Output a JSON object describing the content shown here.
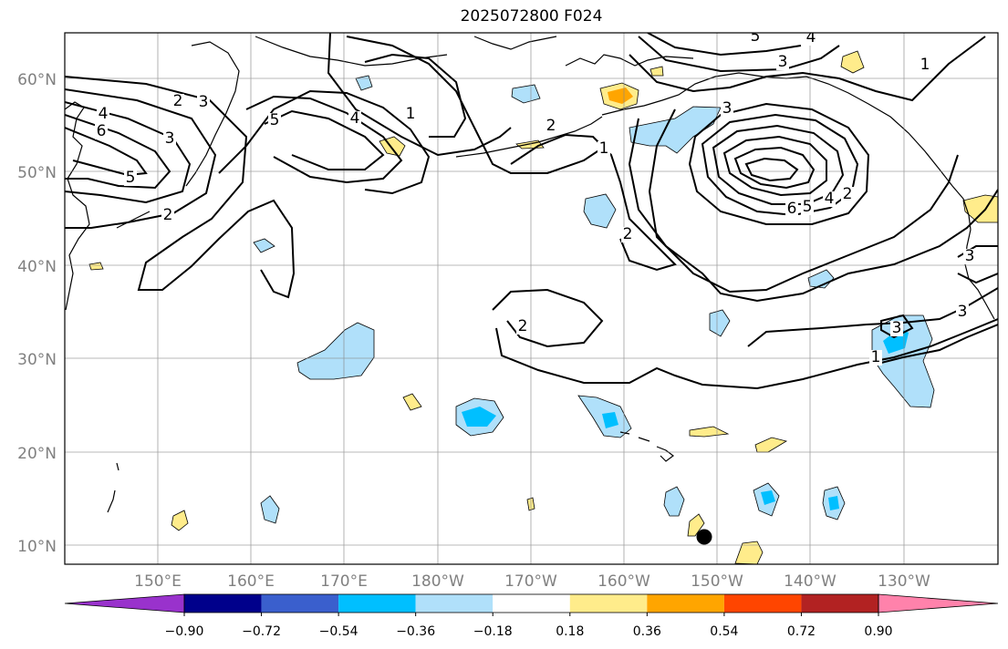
{
  "title": "2025072800 F024",
  "lat_labels": [
    "60°N",
    "50°N",
    "40°N",
    "30°N",
    "20°N",
    "10°N"
  ],
  "lon_labels": [
    "150°E",
    "160°E",
    "170°E",
    "180°W",
    "170°W",
    "160°W",
    "150°W",
    "140°W",
    "130°W"
  ],
  "colorbar": {
    "colors": [
      "#9932cc",
      "#00008b",
      "#3a5fcd",
      "#00bfff",
      "#b0e0fa",
      "#ffffff",
      "#ffec8b",
      "#ffa500",
      "#ff4500",
      "#b22222",
      "#ff82ab"
    ],
    "tick_labels": [
      "−0.90",
      "−0.72",
      "−0.54",
      "−0.36",
      "−0.18",
      "0.18",
      "0.36",
      "0.54",
      "0.72",
      "0.90"
    ]
  },
  "contour_labels": [
    {
      "id": "label-4-west",
      "text": "4"
    },
    {
      "id": "label-6-west",
      "text": "6"
    },
    {
      "id": "label-5-west",
      "text": "5"
    },
    {
      "id": "label-2-west",
      "text": "2"
    },
    {
      "id": "label-3-west",
      "text": "3"
    },
    {
      "id": "label-2-west-south",
      "text": "2"
    },
    {
      "id": "label-3-northwest",
      "text": "3"
    },
    {
      "id": "label-5-northwest",
      "text": "5"
    },
    {
      "id": "label-4-central",
      "text": "4"
    },
    {
      "id": "label-1-central",
      "text": "1"
    },
    {
      "id": "label-2-aleutian",
      "text": "2"
    },
    {
      "id": "label-1-gulf-west",
      "text": "1"
    },
    {
      "id": "label-2-central-pacific",
      "text": "2"
    },
    {
      "id": "label-2-subtropical",
      "text": "2"
    },
    {
      "id": "label-5-north",
      "text": "5"
    },
    {
      "id": "label-4-north",
      "text": "4"
    },
    {
      "id": "label-3-north",
      "text": "3"
    },
    {
      "id": "label-3-gulf",
      "text": "3"
    },
    {
      "id": "label-6-gulf",
      "text": "6"
    },
    {
      "id": "label-5-gulf",
      "text": "5"
    },
    {
      "id": "label-4-gulf",
      "text": "4"
    },
    {
      "id": "label-2-gulf",
      "text": "2"
    },
    {
      "id": "label-1-east",
      "text": "1"
    },
    {
      "id": "label-3-east",
      "text": "3"
    },
    {
      "id": "label-1-subtropical-east",
      "text": "1"
    },
    {
      "id": "label-3-california",
      "text": "3"
    },
    {
      "id": "label-3-coast",
      "text": "3"
    }
  ]
}
